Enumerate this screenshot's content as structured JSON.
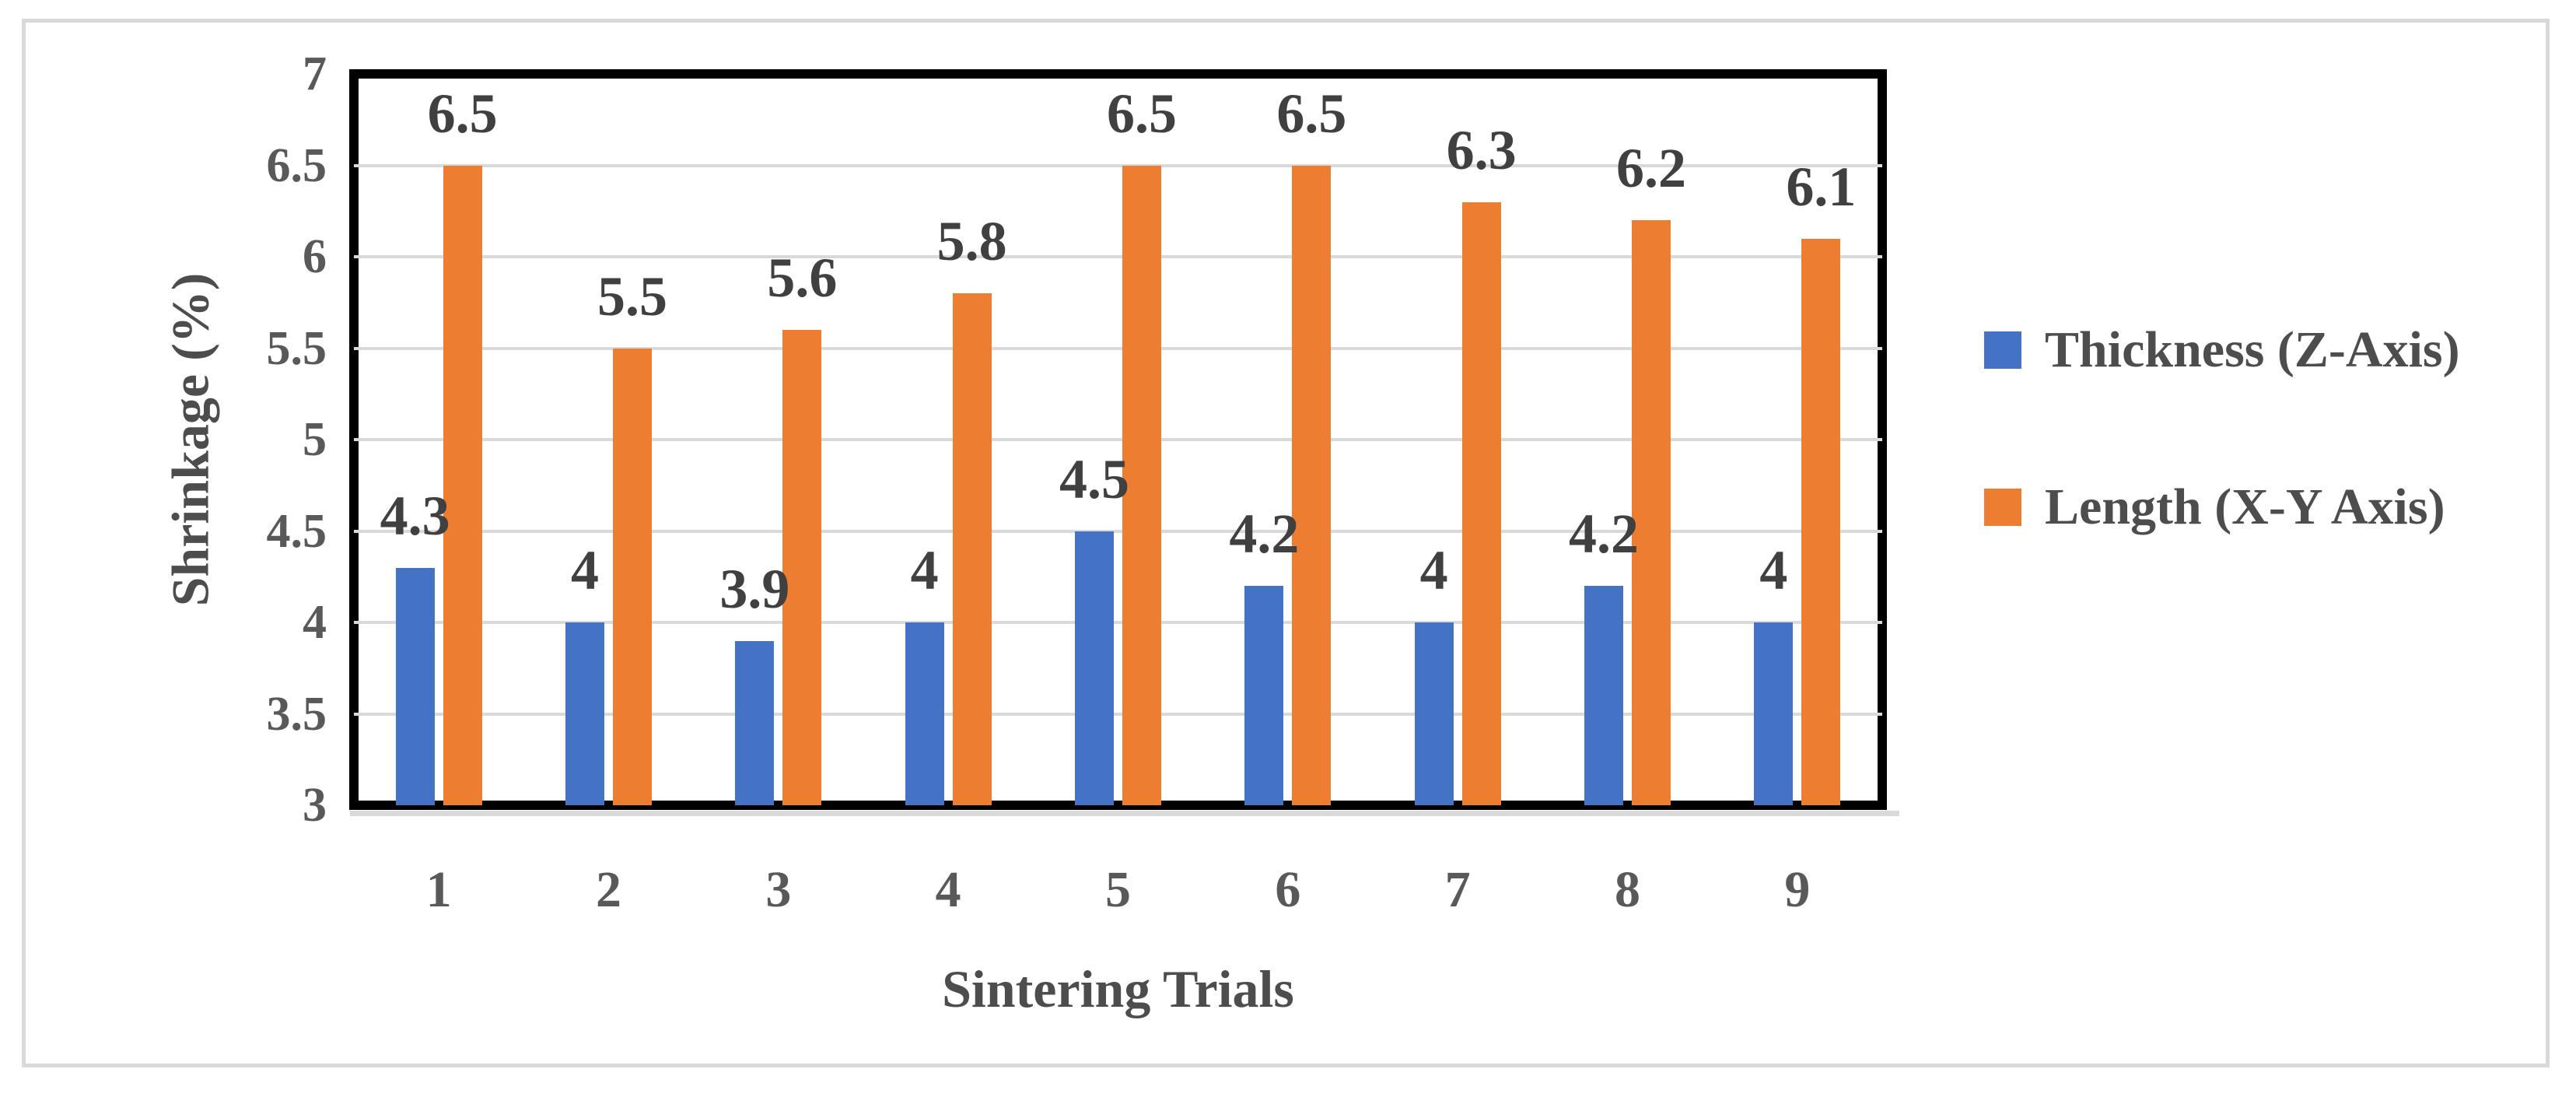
{
  "chart_data": {
    "type": "bar",
    "title": "",
    "categories": [
      "1",
      "2",
      "3",
      "4",
      "5",
      "6",
      "7",
      "8",
      "9"
    ],
    "series": [
      {
        "name": "Thickness (Z-Axis)",
        "color": "#4472c4",
        "values": [
          4.3,
          4,
          3.9,
          4,
          4.5,
          4.2,
          4,
          4.2,
          4
        ],
        "labels": [
          "4.3",
          "4",
          "3.9",
          "4",
          "4.5",
          "4.2",
          "4",
          "4.2",
          "4"
        ]
      },
      {
        "name": "Length (X-Y Axis)",
        "color": "#ed7d31",
        "values": [
          6.5,
          5.5,
          5.6,
          5.8,
          6.5,
          6.5,
          6.3,
          6.2,
          6.1
        ],
        "labels": [
          "6.5",
          "5.5",
          "5.6",
          "5.8",
          "6.5",
          "6.5",
          "6.3",
          "6.2",
          "6.1"
        ]
      }
    ],
    "xlabel": "Sintering Trials",
    "ylabel": "Shrinkage (%)",
    "ylim": [
      3,
      7
    ],
    "ytick_step": 0.5,
    "yticks": [
      "3",
      "3.5",
      "4",
      "4.5",
      "5",
      "5.5",
      "6",
      "6.5",
      "7"
    ],
    "grid": true,
    "legend_position": "right"
  },
  "colors": {
    "bar_blue": "#4472c4",
    "bar_orange": "#ed7d31",
    "gridline": "#d9d9d9",
    "plot_border": "#000000",
    "outer_border": "#d9d9d9",
    "tick_text": "#595959",
    "data_label_text": "#404040",
    "axis_title_text": "#4d4d4d"
  }
}
